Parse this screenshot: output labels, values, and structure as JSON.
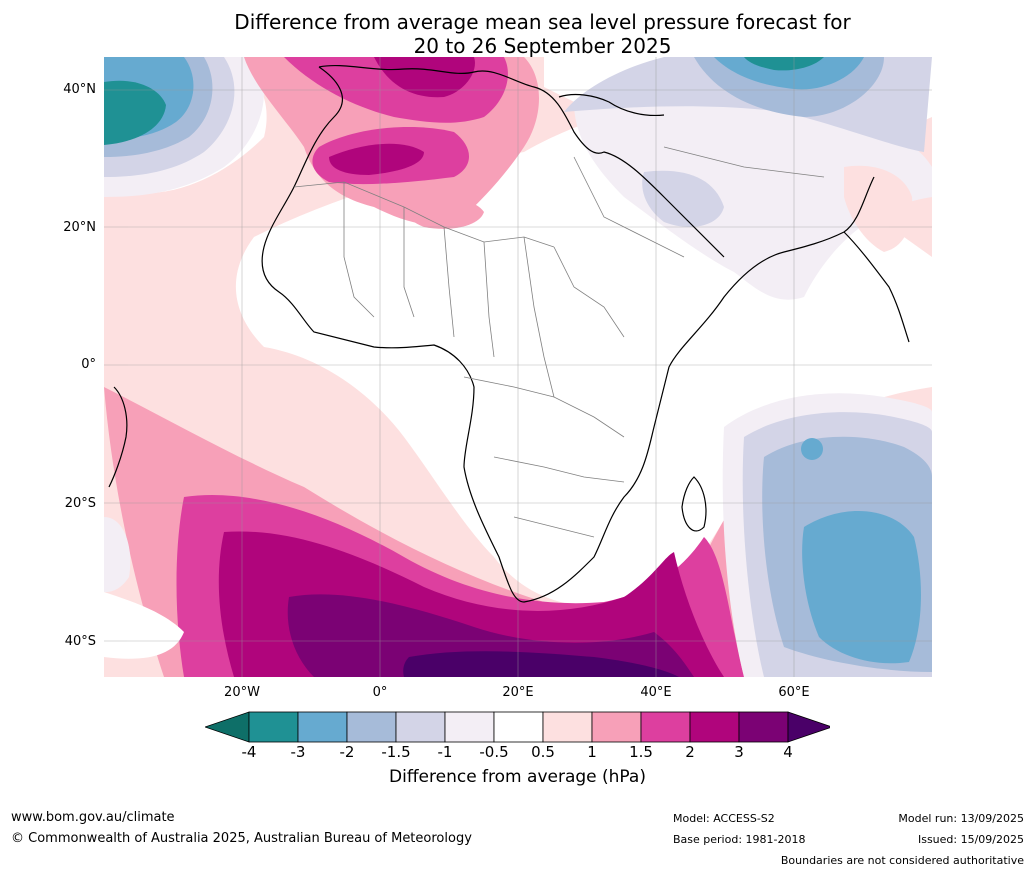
{
  "title": {
    "line1": "Difference from average mean sea level pressure forecast for",
    "line2": "20 to 26 September 2025"
  },
  "axes": {
    "lat_labels": [
      "40°N",
      "20°N",
      "0°",
      "20°S",
      "40°S"
    ],
    "lon_labels": [
      "20°W",
      "0°",
      "20°E",
      "40°E",
      "60°E"
    ]
  },
  "colorbar": {
    "labels": [
      "-4",
      "-3",
      "-2",
      "-1.5",
      "-1",
      "-0.5",
      "0.5",
      "1",
      "1.5",
      "2",
      "3",
      "4"
    ],
    "colors": [
      "#0e6f68",
      "#1f9194",
      "#66aad0",
      "#a6bbd9",
      "#d3d4e7",
      "#f3eef5",
      "#ffffff",
      "#fde0e0",
      "#f7a0b8",
      "#dd3f9f",
      "#b0057c",
      "#7b0274",
      "#4a0068"
    ],
    "title": "Difference from average (hPa)"
  },
  "footer": {
    "website": "www.bom.gov.au/climate",
    "copyright": "© Commonwealth of Australia 2025, Australian Bureau of Meteorology",
    "model": "Model: ACCESS-S2",
    "base_period": "Base period: 1981-2018",
    "model_run": "Model run: 13/09/2025",
    "issued": "Issued: 15/09/2025",
    "disclaimer": "Boundaries are not considered authoritative"
  }
}
